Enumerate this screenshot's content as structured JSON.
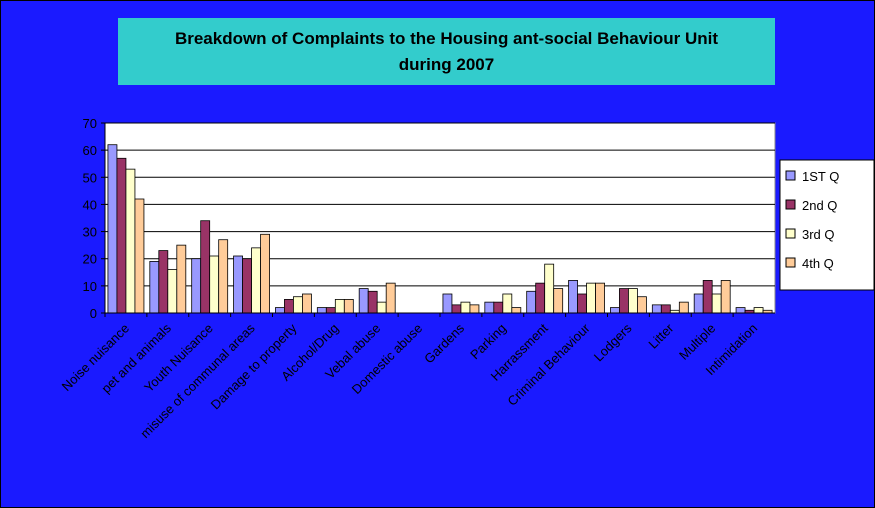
{
  "chart_data": {
    "type": "bar",
    "title": "Breakdown of Complaints to the Housing ant-social Behaviour Unit during 2007",
    "categories": [
      "Noise nuisance",
      "pet and animals",
      "Youth Nuisance",
      "misuse of communal areas",
      "Damage to property",
      "Alcohol/Drug",
      "Vebal abuse",
      "Domestic abuse",
      "Gardens",
      "Parking",
      "Harrassment",
      "Criminal Behaviour",
      "Lodgers",
      "Litter",
      "Multiple",
      "Intimidation"
    ],
    "series": [
      {
        "name": "1ST Q",
        "color": "#9999ff",
        "values": [
          62,
          19,
          20,
          21,
          2,
          2,
          9,
          0,
          7,
          4,
          8,
          12,
          2,
          3,
          7,
          2
        ]
      },
      {
        "name": "2nd Q",
        "color": "#993366",
        "values": [
          57,
          23,
          34,
          20,
          5,
          2,
          8,
          0,
          3,
          4,
          11,
          7,
          9,
          3,
          12,
          1
        ]
      },
      {
        "name": "3rd Q",
        "color": "#ffffcc",
        "values": [
          53,
          16,
          21,
          24,
          6,
          5,
          4,
          0,
          4,
          7,
          18,
          11,
          9,
          1,
          7,
          2
        ]
      },
      {
        "name": "4th Q",
        "color": "#ffcc99",
        "values": [
          42,
          25,
          27,
          29,
          7,
          5,
          11,
          0,
          3,
          2,
          9,
          11,
          6,
          4,
          12,
          1
        ]
      }
    ],
    "ylim": [
      0,
      70
    ],
    "yticks": [
      0,
      10,
      20,
      30,
      40,
      50,
      60,
      70
    ],
    "grid": true,
    "legend": "right"
  }
}
